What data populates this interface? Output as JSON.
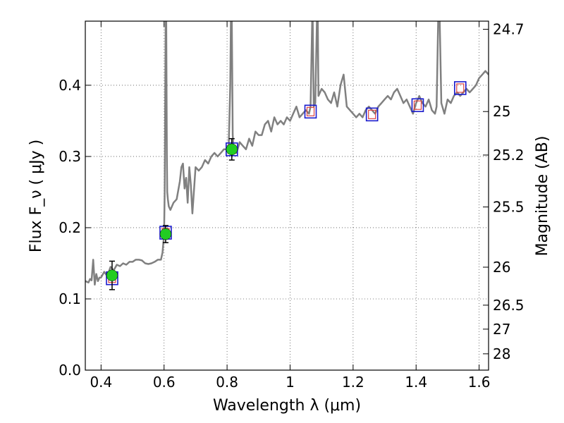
{
  "chart_data": {
    "type": "line",
    "xlabel": "Wavelength  λ (μm)",
    "ylabel": "Flux  F_ν  ( μJy )",
    "y2label": "Magnitude (AB)",
    "xlim": [
      0.35,
      1.63
    ],
    "ylim": [
      0.0,
      0.49
    ],
    "grid": true,
    "x_ticks": [
      0.4,
      0.6,
      0.8,
      1.0,
      1.2,
      1.4,
      1.6
    ],
    "x_tick_labels": [
      "0.4",
      "0.6",
      "0.8",
      "1",
      "1.2",
      "1.4",
      "1.6"
    ],
    "y_ticks": [
      0.0,
      0.1,
      0.2,
      0.3,
      0.4
    ],
    "y_tick_labels": [
      "0.0",
      "0.1",
      "0.2",
      "0.3",
      "0.4"
    ],
    "y2_ticks": [
      {
        "label": "24.7",
        "mag": 24.7
      },
      {
        "label": "25",
        "mag": 25.0
      },
      {
        "label": "25.2",
        "mag": 25.2
      },
      {
        "label": "25.5",
        "mag": 25.5
      },
      {
        "label": "26",
        "mag": 26.0
      },
      {
        "label": "26.5",
        "mag": 26.5
      },
      {
        "label": "27",
        "mag": 27.0
      },
      {
        "label": "28",
        "mag": 28.0
      }
    ],
    "colors": {
      "spectrum": "#808080",
      "observed_point": "#22cc22",
      "model_box": "#1a1acc",
      "model_inner": "#dd4444",
      "error_bar": "#000000",
      "grid": "#555555"
    },
    "series": [
      {
        "kind": "spectrum",
        "x": [
          0.35,
          0.36,
          0.365,
          0.37,
          0.375,
          0.38,
          0.385,
          0.39,
          0.395,
          0.4,
          0.41,
          0.42,
          0.43,
          0.44,
          0.45,
          0.46,
          0.47,
          0.48,
          0.49,
          0.5,
          0.51,
          0.52,
          0.53,
          0.54,
          0.55,
          0.56,
          0.57,
          0.58,
          0.59,
          0.595,
          0.6,
          0.602,
          0.605,
          0.607,
          0.609,
          0.61,
          0.612,
          0.615,
          0.62,
          0.63,
          0.64,
          0.65,
          0.655,
          0.66,
          0.665,
          0.67,
          0.675,
          0.68,
          0.685,
          0.69,
          0.7,
          0.71,
          0.72,
          0.73,
          0.74,
          0.75,
          0.76,
          0.77,
          0.78,
          0.79,
          0.8,
          0.805,
          0.81,
          0.812,
          0.815,
          0.818,
          0.82,
          0.83,
          0.84,
          0.85,
          0.86,
          0.87,
          0.88,
          0.89,
          0.9,
          0.91,
          0.92,
          0.93,
          0.94,
          0.95,
          0.96,
          0.97,
          0.98,
          0.99,
          1.0,
          1.01,
          1.02,
          1.03,
          1.04,
          1.05,
          1.06,
          1.065,
          1.07,
          1.072,
          1.075,
          1.08,
          1.085,
          1.088,
          1.09,
          1.1,
          1.11,
          1.12,
          1.13,
          1.14,
          1.15,
          1.16,
          1.17,
          1.18,
          1.19,
          1.2,
          1.21,
          1.22,
          1.23,
          1.24,
          1.25,
          1.26,
          1.27,
          1.28,
          1.29,
          1.3,
          1.31,
          1.32,
          1.33,
          1.34,
          1.35,
          1.36,
          1.37,
          1.38,
          1.39,
          1.4,
          1.41,
          1.42,
          1.43,
          1.44,
          1.45,
          1.46,
          1.465,
          1.47,
          1.475,
          1.48,
          1.49,
          1.5,
          1.51,
          1.52,
          1.53,
          1.54,
          1.55,
          1.56,
          1.57,
          1.58,
          1.59,
          1.6,
          1.61,
          1.62,
          1.63
        ],
        "y": [
          0.125,
          0.123,
          0.128,
          0.126,
          0.155,
          0.12,
          0.135,
          0.125,
          0.13,
          0.13,
          0.138,
          0.132,
          0.145,
          0.14,
          0.148,
          0.146,
          0.15,
          0.148,
          0.152,
          0.152,
          0.155,
          0.155,
          0.154,
          0.15,
          0.149,
          0.15,
          0.152,
          0.155,
          0.155,
          0.165,
          0.19,
          0.25,
          0.49,
          0.49,
          0.3,
          0.25,
          0.24,
          0.23,
          0.225,
          0.235,
          0.24,
          0.265,
          0.285,
          0.29,
          0.255,
          0.27,
          0.235,
          0.285,
          0.26,
          0.22,
          0.285,
          0.28,
          0.285,
          0.295,
          0.29,
          0.3,
          0.305,
          0.3,
          0.305,
          0.31,
          0.31,
          0.31,
          0.4,
          0.49,
          0.49,
          0.33,
          0.315,
          0.305,
          0.32,
          0.315,
          0.31,
          0.325,
          0.315,
          0.335,
          0.33,
          0.33,
          0.345,
          0.35,
          0.335,
          0.355,
          0.345,
          0.35,
          0.345,
          0.355,
          0.35,
          0.36,
          0.37,
          0.355,
          0.36,
          0.365,
          0.36,
          0.37,
          0.49,
          0.49,
          0.37,
          0.375,
          0.49,
          0.49,
          0.385,
          0.395,
          0.39,
          0.38,
          0.375,
          0.39,
          0.37,
          0.4,
          0.415,
          0.37,
          0.365,
          0.36,
          0.355,
          0.36,
          0.355,
          0.365,
          0.37,
          0.365,
          0.36,
          0.37,
          0.375,
          0.38,
          0.385,
          0.38,
          0.39,
          0.395,
          0.385,
          0.375,
          0.38,
          0.37,
          0.36,
          0.375,
          0.385,
          0.375,
          0.37,
          0.38,
          0.365,
          0.36,
          0.37,
          0.49,
          0.49,
          0.375,
          0.36,
          0.38,
          0.375,
          0.385,
          0.39,
          0.385,
          0.39,
          0.395,
          0.39,
          0.395,
          0.4,
          0.41,
          0.415,
          0.42,
          0.415
        ]
      },
      {
        "kind": "observed",
        "x": [
          0.435,
          0.605,
          0.815
        ],
        "y": [
          0.133,
          0.191,
          0.31
        ],
        "yerr": [
          0.02,
          0.012,
          0.015
        ]
      },
      {
        "kind": "model_boxes",
        "x": [
          0.435,
          0.605,
          0.815,
          1.065,
          1.26,
          1.405,
          1.54
        ],
        "y": [
          0.129,
          0.193,
          0.31,
          0.363,
          0.359,
          0.372,
          0.396
        ]
      }
    ]
  }
}
